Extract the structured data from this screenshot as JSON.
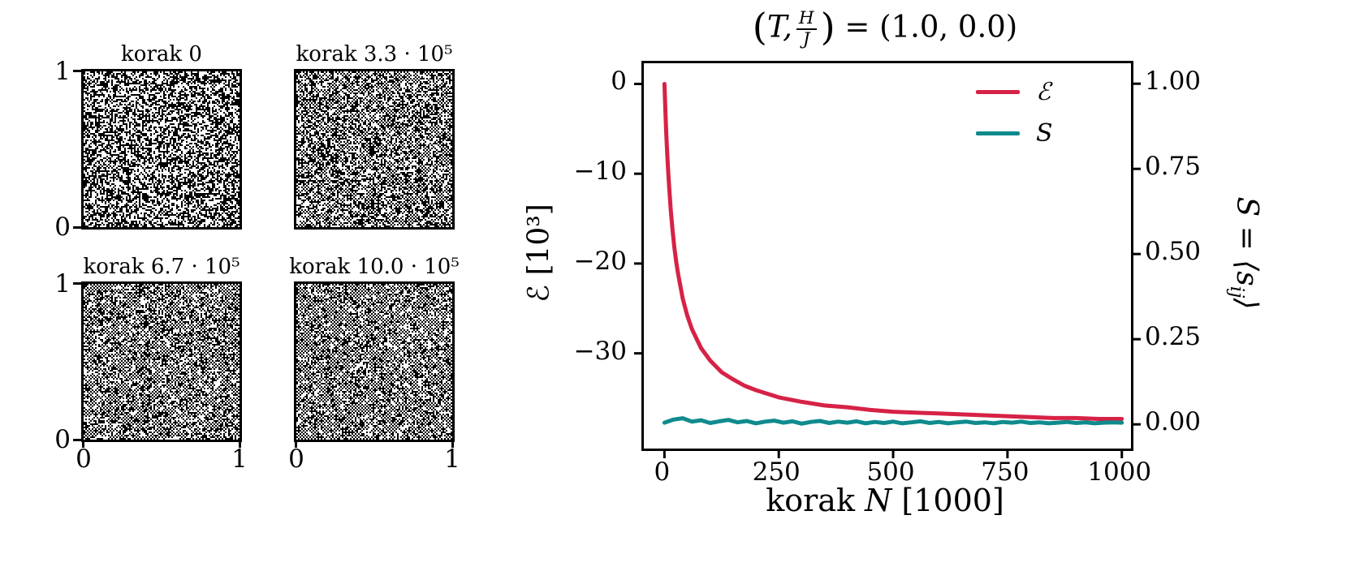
{
  "figure": {
    "background": "#ffffff"
  },
  "lattices": [
    {
      "title": "korak 0",
      "pattern": "random",
      "defect_rate": 0.5
    },
    {
      "title": "korak 3.3 · 10⁵",
      "pattern": "checkerboard",
      "defect_rate": 0.24
    },
    {
      "title": "korak 6.7 · 10⁵",
      "pattern": "checkerboard",
      "defect_rate": 0.18
    },
    {
      "title": "korak 10.0 · 10⁵",
      "pattern": "checkerboard",
      "defect_rate": 0.15
    }
  ],
  "lattice_axis": {
    "y_top": "1",
    "y_bottom": "0",
    "x_left": "0",
    "x_right": "1"
  },
  "chart_data": {
    "type": "line",
    "title": {
      "open": "(",
      "var": "T,",
      "frac_num": "H",
      "frac_den": "J",
      "close": ")",
      "rest": " = (1.0, 0.0)"
    },
    "xlabel": {
      "pre": "korak ",
      "var": "N",
      "post": " [1000]"
    },
    "x_axis": {
      "ticks": [
        0,
        250,
        500,
        750,
        1000
      ],
      "labels": [
        "0",
        "250",
        "500",
        "750",
        "1000"
      ],
      "lim": [
        -45,
        1020
      ]
    },
    "left_axis": {
      "label": "ℰ [10³]",
      "ticks": [
        0,
        -10,
        -20,
        -30
      ],
      "labels": [
        "0",
        "−10",
        "−20",
        "−30"
      ],
      "lim": [
        2.3,
        -40.6
      ]
    },
    "right_axis": {
      "label_pre": "S = ⟨s",
      "label_sub": "ij",
      "label_post": "⟩",
      "ticks": [
        1.0,
        0.75,
        0.5,
        0.25,
        0.0
      ],
      "labels": [
        "1.00",
        "0.75",
        "0.50",
        "0.25",
        "0.00"
      ],
      "lim": [
        1.06,
        -0.071
      ]
    },
    "legend": [
      {
        "label": "ℰ",
        "color": "#d62246"
      },
      {
        "label": "S",
        "color": "#0f8b8d"
      }
    ],
    "series": [
      {
        "name": "E",
        "axis": "left",
        "color": "#d62246",
        "linewidth": 5,
        "x": [
          0,
          2,
          4,
          6,
          8,
          10,
          14,
          18,
          22,
          26,
          30,
          40,
          50,
          60,
          80,
          100,
          125,
          150,
          175,
          200,
          250,
          300,
          350,
          400,
          450,
          500,
          550,
          600,
          650,
          700,
          750,
          800,
          850,
          900,
          950,
          1000
        ],
        "y": [
          0,
          -2.9,
          -5.5,
          -7.6,
          -9.6,
          -11.2,
          -14.1,
          -16.4,
          -18.3,
          -19.9,
          -21.2,
          -23.9,
          -25.8,
          -27.3,
          -29.4,
          -30.8,
          -32.1,
          -32.9,
          -33.6,
          -34.1,
          -34.9,
          -35.4,
          -35.8,
          -36.0,
          -36.3,
          -36.5,
          -36.6,
          -36.7,
          -36.8,
          -36.9,
          -37.0,
          -37.1,
          -37.2,
          -37.2,
          -37.3,
          -37.3
        ]
      },
      {
        "name": "S",
        "axis": "right",
        "color": "#0f8b8d",
        "linewidth": 5,
        "x": [
          0,
          20,
          40,
          60,
          80,
          100,
          120,
          140,
          160,
          180,
          200,
          220,
          240,
          260,
          280,
          300,
          320,
          340,
          360,
          380,
          400,
          420,
          440,
          460,
          480,
          500,
          520,
          540,
          560,
          580,
          600,
          620,
          640,
          660,
          680,
          700,
          720,
          740,
          760,
          780,
          800,
          820,
          840,
          860,
          880,
          900,
          920,
          940,
          960,
          980,
          1000
        ],
        "y": [
          0.005,
          0.014,
          0.018,
          0.008,
          0.012,
          0.004,
          0.009,
          0.013,
          0.006,
          0.01,
          0.003,
          0.008,
          0.011,
          0.005,
          0.009,
          0.002,
          0.007,
          0.01,
          0.004,
          0.008,
          0.005,
          0.009,
          0.003,
          0.007,
          0.004,
          0.008,
          0.003,
          0.006,
          0.009,
          0.004,
          0.007,
          0.003,
          0.006,
          0.008,
          0.004,
          0.006,
          0.003,
          0.007,
          0.005,
          0.008,
          0.004,
          0.006,
          0.003,
          0.005,
          0.007,
          0.004,
          0.006,
          0.003,
          0.005,
          0.006,
          0.005
        ]
      }
    ]
  }
}
